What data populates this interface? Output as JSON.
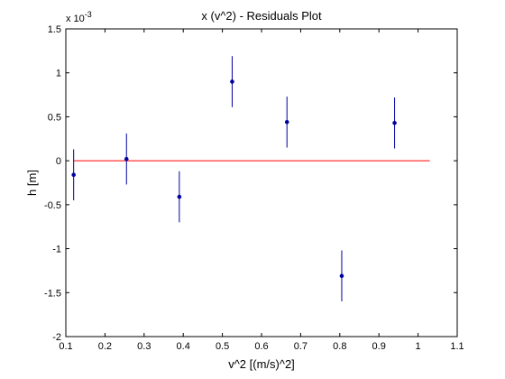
{
  "chart_data": {
    "type": "scatter",
    "title": "x (v^2) - Residuals Plot",
    "xlabel": "v^2 [(m/s)^2]",
    "ylabel": "h [m]",
    "y_scale_base": "x 10",
    "y_scale_exponent": "-3",
    "xlim": [
      0.1,
      1.1
    ],
    "ylim": [
      -2,
      1.5
    ],
    "x_ticks": [
      0.1,
      0.2,
      0.3,
      0.4,
      0.5,
      0.6,
      0.7,
      0.8,
      0.9,
      1,
      1.1
    ],
    "x_tick_labels": [
      "0.1",
      "0.2",
      "0.3",
      "0.4",
      "0.5",
      "0.6",
      "0.7",
      "0.8",
      "0.9",
      "1",
      "1.1"
    ],
    "y_ticks": [
      -2,
      -1.5,
      -1,
      -0.5,
      0,
      0.5,
      1,
      1.5
    ],
    "y_tick_labels": [
      "-2",
      "-1.5",
      "-1",
      "-0.5",
      "0",
      "0.5",
      "1",
      "1.5"
    ],
    "grid": false,
    "series": [
      {
        "marker_color": "#0000a0",
        "points": [
          {
            "x": 0.12,
            "y": -0.16,
            "err": 0.29
          },
          {
            "x": 0.255,
            "y": 0.02,
            "err": 0.29
          },
          {
            "x": 0.39,
            "y": -0.41,
            "err": 0.29
          },
          {
            "x": 0.525,
            "y": 0.9,
            "err": 0.29
          },
          {
            "x": 0.665,
            "y": 0.44,
            "err": 0.29
          },
          {
            "x": 0.805,
            "y": -1.31,
            "err": 0.29
          },
          {
            "x": 0.94,
            "y": 0.43,
            "err": 0.29
          }
        ]
      }
    ],
    "reference_line": {
      "y": 0,
      "x_from": 0.12,
      "x_to": 1.03,
      "color": "#ff0000"
    }
  }
}
